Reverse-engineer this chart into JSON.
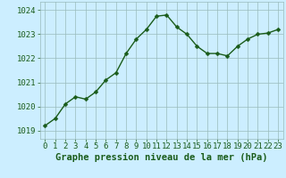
{
  "x": [
    0,
    1,
    2,
    3,
    4,
    5,
    6,
    7,
    8,
    9,
    10,
    11,
    12,
    13,
    14,
    15,
    16,
    17,
    18,
    19,
    20,
    21,
    22,
    23
  ],
  "y": [
    1019.2,
    1019.5,
    1020.1,
    1020.4,
    1020.3,
    1020.6,
    1021.1,
    1021.4,
    1022.2,
    1022.8,
    1023.2,
    1023.75,
    1023.8,
    1023.3,
    1023.0,
    1022.5,
    1022.2,
    1022.2,
    1022.1,
    1022.5,
    1022.8,
    1023.0,
    1023.05,
    1023.2
  ],
  "line_color": "#1a5c1a",
  "marker_color": "#1a5c1a",
  "bg_color": "#cceeff",
  "grid_color": "#99bbbb",
  "ylabel_ticks": [
    1019,
    1020,
    1021,
    1022,
    1023,
    1024
  ],
  "xlabel": "Graphe pression niveau de la mer (hPa)",
  "ylim": [
    1018.65,
    1024.35
  ],
  "xlim": [
    -0.5,
    23.5
  ],
  "xlabel_fontsize": 7.5,
  "tick_fontsize": 6.5,
  "line_width": 1.0,
  "marker_size": 2.5
}
